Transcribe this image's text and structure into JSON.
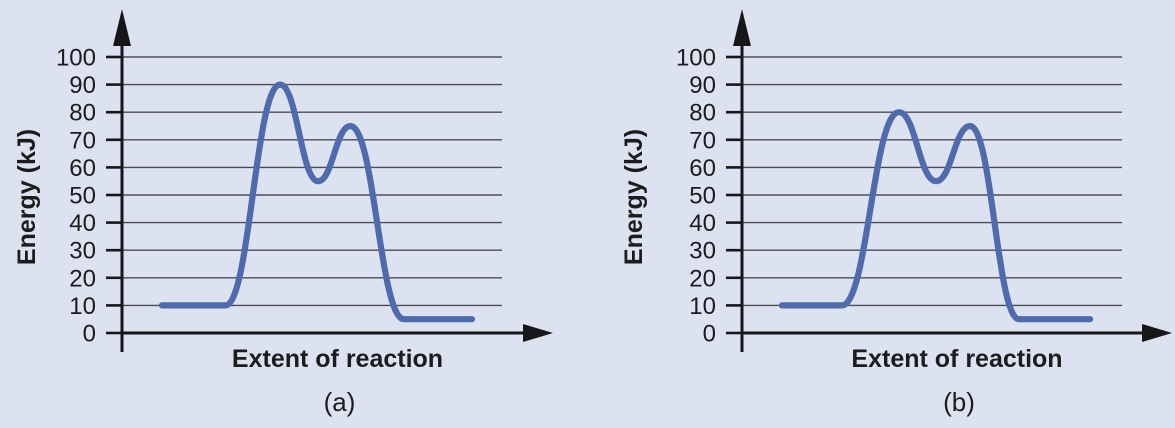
{
  "figure": {
    "background_color": "#dde2f0",
    "curve_color": "#4f6bae",
    "grid_color": "#4c4c55",
    "axis_color": "#17171a",
    "text_color": "#1c1c1e"
  },
  "chart_data": [
    {
      "id": "a",
      "type": "line",
      "caption": "(a)",
      "xlabel": "Extent of reaction",
      "ylabel": "Energy (kJ)",
      "ylim": [
        0,
        100
      ],
      "yticks": [
        0,
        10,
        20,
        30,
        40,
        50,
        60,
        70,
        80,
        90,
        100
      ],
      "grid": "horizontal-only",
      "legend": "none",
      "key_points_kJ": {
        "reactants": 10,
        "transition_state_1": 90,
        "intermediate": 55,
        "transition_state_2": 75,
        "products": 5
      },
      "curve_points": [
        [
          0.105,
          10
        ],
        [
          0.272,
          10
        ],
        [
          0.416,
          90
        ],
        [
          0.516,
          55
        ],
        [
          0.601,
          75
        ],
        [
          0.742,
          5
        ],
        [
          0.921,
          5
        ]
      ]
    },
    {
      "id": "b",
      "type": "line",
      "caption": "(b)",
      "xlabel": "Extent of reaction",
      "ylabel": "Energy (kJ)",
      "ylim": [
        0,
        100
      ],
      "yticks": [
        0,
        10,
        20,
        30,
        40,
        50,
        60,
        70,
        80,
        90,
        100
      ],
      "grid": "horizontal-only",
      "legend": "none",
      "key_points_kJ": {
        "reactants": 10,
        "transition_state_1": 80,
        "intermediate": 55,
        "transition_state_2": 75,
        "products": 5
      },
      "curve_points": [
        [
          0.105,
          10
        ],
        [
          0.263,
          10
        ],
        [
          0.413,
          80
        ],
        [
          0.511,
          55
        ],
        [
          0.6,
          75
        ],
        [
          0.729,
          5
        ],
        [
          0.916,
          5
        ]
      ]
    }
  ]
}
